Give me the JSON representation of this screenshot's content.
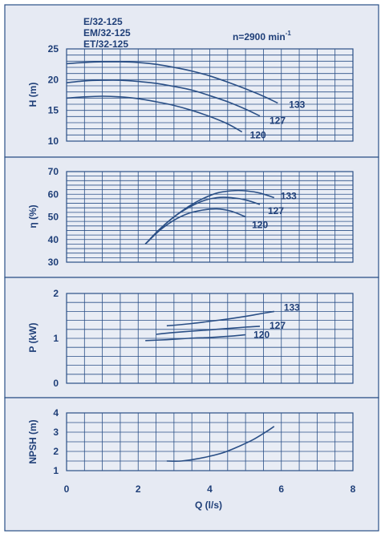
{
  "models": [
    "E/32-125",
    "EM/32-125",
    "ET/32-125"
  ],
  "speed": {
    "text": "n=2900 min",
    "sup": "-1"
  },
  "xlabel": "Q (l/s)",
  "colors": {
    "line": "#2a4f86",
    "text": "#1f3f78",
    "panel": "#e6eaf3",
    "plot": "#e9edf5"
  },
  "chart_data": [
    {
      "type": "line",
      "ylabel": "H (m)",
      "xlim": [
        0,
        8
      ],
      "ylim": [
        10,
        25
      ],
      "yticks": [
        "10",
        "15",
        "20",
        "25"
      ],
      "series": [
        {
          "name": "133",
          "x": [
            0,
            0.5,
            1,
            1.5,
            2,
            2.5,
            3,
            3.5,
            4,
            4.5,
            5,
            5.5,
            5.9
          ],
          "y": [
            22.6,
            22.8,
            22.9,
            22.9,
            22.8,
            22.5,
            22.0,
            21.4,
            20.6,
            19.6,
            18.5,
            17.3,
            16.2
          ]
        },
        {
          "name": "127",
          "x": [
            0,
            0.5,
            1,
            1.5,
            2,
            2.5,
            3,
            3.5,
            4,
            4.5,
            5,
            5.4
          ],
          "y": [
            19.5,
            19.8,
            19.9,
            19.9,
            19.7,
            19.4,
            18.9,
            18.3,
            17.4,
            16.4,
            15.2,
            14.1
          ]
        },
        {
          "name": "120",
          "x": [
            0,
            0.5,
            1,
            1.5,
            2,
            2.5,
            3,
            3.5,
            4,
            4.5,
            4.9
          ],
          "y": [
            17.0,
            17.2,
            17.3,
            17.2,
            16.9,
            16.4,
            15.8,
            15.0,
            14.0,
            12.8,
            11.5
          ]
        }
      ]
    },
    {
      "type": "line",
      "ylabel": "η (%)",
      "xlim": [
        0,
        8
      ],
      "ylim": [
        30,
        70
      ],
      "yticks": [
        "30",
        "40",
        "50",
        "60",
        "70"
      ],
      "series": [
        {
          "name": "133",
          "x": [
            2.2,
            2.6,
            3.0,
            3.4,
            3.8,
            4.2,
            4.6,
            5.0,
            5.4,
            5.8
          ],
          "y": [
            38,
            44.5,
            50,
            54.5,
            58,
            60.5,
            61.5,
            61.5,
            60.5,
            58.5
          ]
        },
        {
          "name": "127",
          "x": [
            2.2,
            2.6,
            3.0,
            3.4,
            3.8,
            4.2,
            4.6,
            5.0,
            5.4
          ],
          "y": [
            38,
            44.5,
            50,
            54,
            57,
            58.5,
            58.5,
            57.5,
            55.5
          ]
        },
        {
          "name": "120",
          "x": [
            2.2,
            2.6,
            3.0,
            3.4,
            3.8,
            4.2,
            4.6,
            5.0
          ],
          "y": [
            38,
            44,
            48.5,
            51.5,
            53,
            53.5,
            52.5,
            50
          ]
        }
      ]
    },
    {
      "type": "line",
      "ylabel": "P (kW)",
      "xlim": [
        0,
        8
      ],
      "ylim": [
        0,
        2
      ],
      "yticks": [
        "0",
        "1",
        "2"
      ],
      "series": [
        {
          "name": "133",
          "x": [
            2.8,
            3.5,
            4.0,
            4.5,
            5.0,
            5.5,
            5.8
          ],
          "y": [
            1.28,
            1.33,
            1.38,
            1.43,
            1.49,
            1.56,
            1.6
          ]
        },
        {
          "name": "127",
          "x": [
            2.5,
            3.0,
            3.5,
            4.0,
            4.5,
            5.0,
            5.4
          ],
          "y": [
            1.09,
            1.13,
            1.16,
            1.19,
            1.22,
            1.25,
            1.27
          ]
        },
        {
          "name": "120",
          "x": [
            2.2,
            2.8,
            3.4,
            4.0,
            4.6,
            5.0
          ],
          "y": [
            0.95,
            0.97,
            1.0,
            1.02,
            1.05,
            1.08
          ]
        }
      ]
    },
    {
      "type": "line",
      "ylabel": "NPSH (m)",
      "xlabel": "Q (l/s)",
      "xlim": [
        0,
        8
      ],
      "ylim": [
        1,
        4
      ],
      "yticks": [
        "1",
        "2",
        "3",
        "4"
      ],
      "xticks": [
        "0",
        "2",
        "4",
        "6",
        "8"
      ],
      "series": [
        {
          "x": [
            2.8,
            3.2,
            3.6,
            4.0,
            4.4,
            4.8,
            5.2,
            5.6,
            5.8
          ],
          "y": [
            1.5,
            1.5,
            1.6,
            1.75,
            1.95,
            2.25,
            2.6,
            3.05,
            3.3
          ]
        }
      ]
    }
  ]
}
